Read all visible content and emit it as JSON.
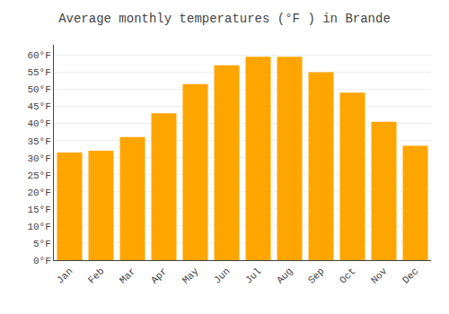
{
  "chart_data": {
    "type": "bar",
    "title": "Average monthly temperatures (°F ) in Brande",
    "categories": [
      "Jan",
      "Feb",
      "Mar",
      "Apr",
      "May",
      "Jun",
      "Jul",
      "Aug",
      "Sep",
      "Oct",
      "Nov",
      "Dec"
    ],
    "values": [
      31.5,
      32.0,
      36.0,
      43.0,
      51.5,
      57.0,
      59.5,
      59.5,
      55.0,
      49.0,
      40.5,
      33.5
    ],
    "color": "#FFA500",
    "ylim": [
      0,
      63
    ],
    "yticks": [
      {
        "value": 0,
        "label": "0°F"
      },
      {
        "value": 5,
        "label": "5°F"
      },
      {
        "value": 10,
        "label": "10°F"
      },
      {
        "value": 15,
        "label": "15°F"
      },
      {
        "value": 20,
        "label": "20°F"
      },
      {
        "value": 25,
        "label": "25°F"
      },
      {
        "value": 30,
        "label": "30°F"
      },
      {
        "value": 35,
        "label": "35°F"
      },
      {
        "value": 40,
        "label": "40°F"
      },
      {
        "value": 45,
        "label": "45°F"
      },
      {
        "value": 50,
        "label": "50°F"
      },
      {
        "value": 55,
        "label": "55°F"
      },
      {
        "value": 60,
        "label": "60°F"
      }
    ],
    "grid": true
  }
}
